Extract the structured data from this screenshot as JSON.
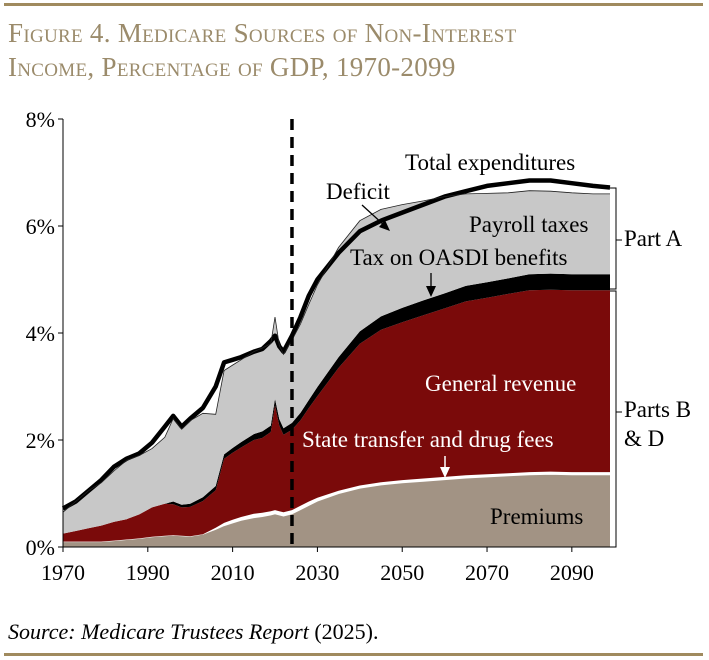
{
  "figure": {
    "title_line1": "Figure 4. Medicare Sources of Non-Interest",
    "title_line2": "Income, Percentage of GDP, 1970-2099",
    "source_label": "Source: Medicare Trustees Report",
    "source_year": "(2025).",
    "title_color": "#9b8b6b",
    "rule_color": "#a08a5e"
  },
  "chart_data": {
    "type": "area",
    "title": "Medicare Sources of Non-Interest Income, Percentage of GDP, 1970-2099",
    "xlabel": "",
    "ylabel": "",
    "xlim": [
      1970,
      2099
    ],
    "ylim": [
      0,
      8
    ],
    "x_ticks": [
      1970,
      1990,
      2010,
      2030,
      2050,
      2070,
      2090
    ],
    "x_tick_labels": [
      "1970",
      "1990",
      "2010",
      "2030",
      "2050",
      "2070",
      "2090"
    ],
    "y_ticks": [
      0,
      2,
      4,
      6,
      8
    ],
    "y_tick_labels": [
      "0%",
      "2%",
      "4%",
      "6%",
      "8%"
    ],
    "projection_start_year": 2024,
    "x": [
      1970,
      1973,
      1976,
      1979,
      1982,
      1985,
      1988,
      1991,
      1994,
      1996,
      1998,
      2000,
      2003,
      2006,
      2008,
      2010,
      2012,
      2015,
      2017,
      2019,
      2020,
      2021,
      2022,
      2024,
      2026,
      2028,
      2030,
      2035,
      2040,
      2045,
      2050,
      2055,
      2060,
      2065,
      2070,
      2075,
      2080,
      2085,
      2090,
      2095,
      2099
    ],
    "series": [
      {
        "name": "Premiums",
        "color": "#a29384",
        "values": [
          0.1,
          0.1,
          0.1,
          0.1,
          0.12,
          0.14,
          0.16,
          0.19,
          0.21,
          0.22,
          0.21,
          0.2,
          0.24,
          0.33,
          0.4,
          0.45,
          0.5,
          0.55,
          0.57,
          0.6,
          0.62,
          0.6,
          0.58,
          0.62,
          0.7,
          0.78,
          0.86,
          1.0,
          1.1,
          1.16,
          1.2,
          1.23,
          1.26,
          1.29,
          1.31,
          1.33,
          1.35,
          1.36,
          1.35,
          1.35,
          1.35
        ]
      },
      {
        "name": "State transfer and drug fees",
        "color": "#ffffff",
        "values": [
          0.0,
          0.0,
          0.0,
          0.0,
          0.0,
          0.0,
          0.0,
          0.0,
          0.0,
          0.0,
          0.0,
          0.0,
          0.0,
          0.03,
          0.05,
          0.06,
          0.06,
          0.07,
          0.07,
          0.07,
          0.07,
          0.07,
          0.07,
          0.07,
          0.07,
          0.07,
          0.06,
          0.05,
          0.05,
          0.05,
          0.05,
          0.05,
          0.05,
          0.05,
          0.05,
          0.05,
          0.05,
          0.05,
          0.05,
          0.05,
          0.05
        ]
      },
      {
        "name": "General revenue",
        "color": "#7a0a0a",
        "values": [
          0.15,
          0.2,
          0.25,
          0.3,
          0.35,
          0.38,
          0.45,
          0.55,
          0.6,
          0.58,
          0.53,
          0.55,
          0.62,
          0.7,
          1.2,
          1.25,
          1.3,
          1.38,
          1.4,
          1.48,
          1.96,
          1.6,
          1.45,
          1.5,
          1.6,
          1.75,
          1.9,
          2.3,
          2.65,
          2.85,
          2.95,
          3.05,
          3.15,
          3.25,
          3.3,
          3.35,
          3.4,
          3.4,
          3.4,
          3.4,
          3.4
        ]
      },
      {
        "name": "Tax on OASDI benefits",
        "color": "#000000",
        "values": [
          0.0,
          0.0,
          0.0,
          0.0,
          0.0,
          0.0,
          0.0,
          0.0,
          0.0,
          0.05,
          0.05,
          0.06,
          0.07,
          0.08,
          0.08,
          0.09,
          0.1,
          0.11,
          0.12,
          0.12,
          0.12,
          0.12,
          0.12,
          0.13,
          0.14,
          0.15,
          0.17,
          0.2,
          0.23,
          0.25,
          0.27,
          0.28,
          0.28,
          0.29,
          0.29,
          0.29,
          0.3,
          0.3,
          0.3,
          0.3,
          0.3
        ]
      },
      {
        "name": "Payroll taxes",
        "color": "#c8c8c8",
        "values": [
          0.4,
          0.55,
          0.7,
          0.8,
          0.95,
          1.1,
          1.1,
          1.1,
          1.24,
          1.55,
          1.41,
          1.55,
          1.57,
          1.34,
          1.57,
          1.55,
          1.54,
          1.54,
          1.56,
          1.53,
          1.53,
          1.38,
          1.38,
          1.55,
          1.66,
          1.79,
          1.91,
          2.05,
          2.07,
          2.0,
          1.93,
          1.86,
          1.81,
          1.72,
          1.66,
          1.6,
          1.56,
          1.54,
          1.52,
          1.5,
          1.5
        ]
      }
    ],
    "total_expenditures": {
      "name": "Total expenditures",
      "color": "#000000",
      "values": [
        0.72,
        0.85,
        1.05,
        1.25,
        1.5,
        1.65,
        1.75,
        1.95,
        2.25,
        2.45,
        2.25,
        2.4,
        2.6,
        3.0,
        3.45,
        3.5,
        3.55,
        3.65,
        3.7,
        3.85,
        3.95,
        3.75,
        3.65,
        3.95,
        4.3,
        4.7,
        5.0,
        5.5,
        5.9,
        6.1,
        6.25,
        6.4,
        6.55,
        6.65,
        6.75,
        6.8,
        6.85,
        6.85,
        6.8,
        6.75,
        6.72
      ]
    },
    "annotations": {
      "total_expenditures": "Total expenditures",
      "deficit": "Deficit",
      "payroll_taxes": "Payroll taxes",
      "tax_on_oasdi": "Tax on OASDI benefits",
      "general_revenue": "General revenue",
      "state_transfer": "State transfer and drug fees",
      "premiums": "Premiums",
      "part_a": "Part A",
      "parts_bd_line1": "Parts B",
      "parts_bd_line2": "& D"
    }
  }
}
